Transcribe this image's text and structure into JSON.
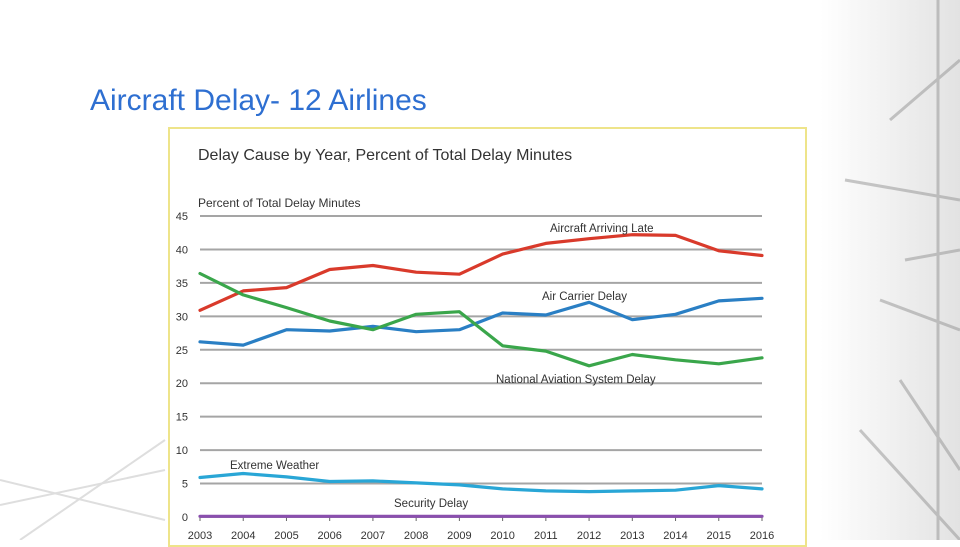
{
  "slide": {
    "title": "Aircraft Delay- 12 Airlines"
  },
  "colors": {
    "title": "#2e6fd1",
    "frame": "#eee48a",
    "grid": "#888888"
  },
  "chart_data": {
    "type": "line",
    "title": "Delay Cause by Year, Percent of Total Delay Minutes",
    "xlabel": "",
    "ylabel": "Percent of Total Delay Minutes",
    "ylim": [
      0,
      45
    ],
    "yticks": [
      0,
      5,
      10,
      15,
      20,
      25,
      30,
      35,
      40,
      45
    ],
    "grid": true,
    "x": [
      "2003",
      "2004",
      "2005",
      "2006",
      "2007",
      "2008",
      "2009",
      "2010",
      "2011",
      "2012",
      "2013",
      "2014",
      "2015",
      "2016"
    ],
    "series": [
      {
        "name": "Aircraft Arriving Late",
        "color": "#d93a2b",
        "values": [
          30.9,
          33.8,
          34.3,
          37.0,
          37.6,
          36.6,
          36.3,
          39.3,
          40.9,
          41.6,
          42.2,
          42.1,
          39.8,
          39.1
        ]
      },
      {
        "name": "Air Carrier Delay",
        "color": "#2a7fc4",
        "values": [
          26.2,
          25.7,
          28.0,
          27.8,
          28.5,
          27.7,
          28.0,
          30.5,
          30.2,
          32.1,
          29.5,
          30.3,
          32.3,
          32.7
        ]
      },
      {
        "name": "National Aviation System Delay",
        "color": "#3aa64b",
        "values": [
          36.4,
          33.2,
          31.3,
          29.3,
          28.0,
          30.3,
          30.7,
          25.6,
          24.8,
          22.6,
          24.3,
          23.5,
          22.9,
          23.8
        ]
      },
      {
        "name": "Extreme Weather",
        "color": "#29a6d6",
        "values": [
          5.9,
          6.5,
          6.0,
          5.3,
          5.4,
          5.1,
          4.8,
          4.2,
          3.9,
          3.8,
          3.9,
          4.0,
          4.7,
          4.2
        ]
      },
      {
        "name": "Security Delay",
        "color": "#8a4fae",
        "values": [
          0.1,
          0.1,
          0.1,
          0.1,
          0.1,
          0.1,
          0.1,
          0.1,
          0.1,
          0.1,
          0.1,
          0.1,
          0.1,
          0.1
        ]
      }
    ]
  }
}
